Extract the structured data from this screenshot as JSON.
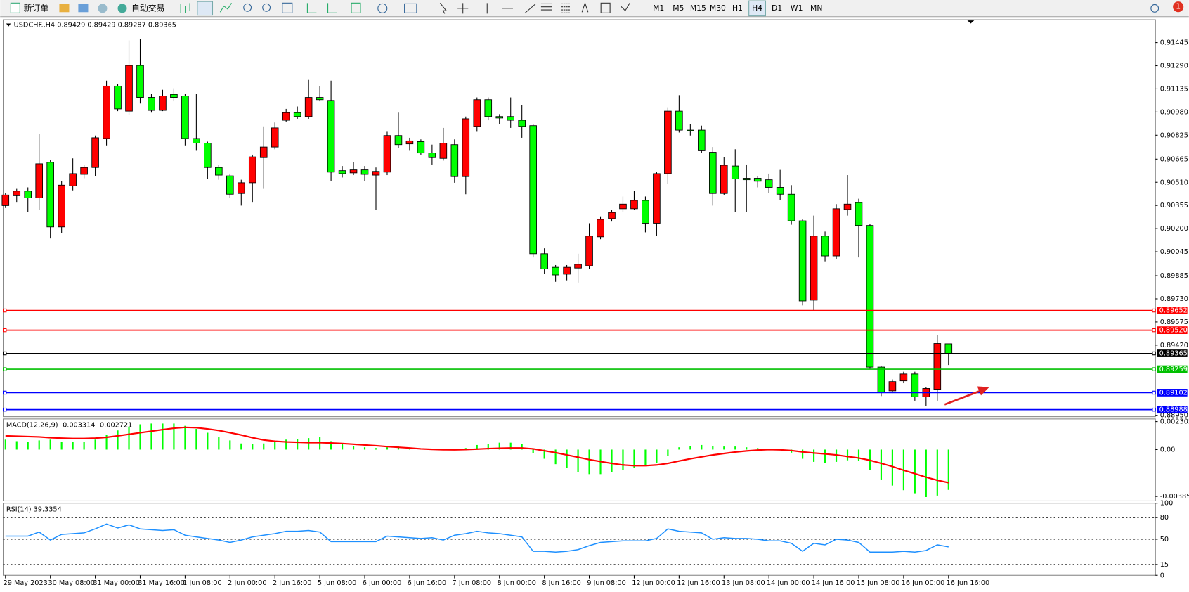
{
  "toolbar": {
    "new_order": "新订单",
    "auto_trade": "自动交易",
    "timeframes": [
      "M1",
      "M5",
      "M15",
      "M30",
      "H1",
      "H4",
      "D1",
      "W1",
      "MN"
    ],
    "selected_timeframe_index": 5,
    "badge": "1"
  },
  "chart_data": [
    {
      "type": "candlestick",
      "title": "USDCHF.,H4  0.89429 0.89429 0.89287 0.89365",
      "up_color": "#ff0000",
      "down_color": "#00ff00",
      "open": [
        0.90354,
        0.9042,
        0.90451,
        0.90405,
        0.90644,
        0.90211,
        0.90486,
        0.90563,
        0.90609,
        0.90803,
        0.91154,
        0.90986,
        0.91292,
        0.91078,
        0.90991,
        0.91098,
        0.91088,
        0.90803,
        0.90772,
        0.90609,
        0.90553,
        0.90435,
        0.90507,
        0.90675,
        0.90746,
        0.90925,
        0.90976,
        0.9095,
        0.91078,
        0.91058,
        0.90588,
        0.90573,
        0.90593,
        0.90558,
        0.90578,
        0.90823,
        0.90767,
        0.90782,
        0.90706,
        0.9067,
        0.90762,
        0.90548,
        0.90884,
        0.91063,
        0.9095,
        0.9095,
        0.90925,
        0.90889,
        0.90032,
        0.89941,
        0.89895,
        0.89936,
        0.89951,
        0.90145,
        0.90267,
        0.90333,
        0.90333,
        0.90389,
        0.90236,
        0.90568,
        0.90986,
        0.90859,
        0.90859,
        0.90711,
        0.90435,
        0.90619,
        0.90537,
        0.90537,
        0.90527,
        0.90476,
        0.9043,
        0.90252,
        0.89721,
        0.9015,
        0.90017,
        0.90328,
        0.90374,
        0.90221,
        0.89273,
        0.89114,
        0.89181,
        0.89227,
        0.89074,
        0.89125,
        0.89429
      ],
      "high": [
        0.9044,
        0.90466,
        0.90476,
        0.90833,
        0.9066,
        0.90517,
        0.9067,
        0.90629,
        0.90823,
        0.9119,
        0.9117,
        0.9146,
        0.91471,
        0.91103,
        0.91129,
        0.91139,
        0.91103,
        0.91103,
        0.90782,
        0.90629,
        0.90568,
        0.90527,
        0.90695,
        0.90884,
        0.9091,
        0.91001,
        0.91017,
        0.91195,
        0.91154,
        0.9119,
        0.90619,
        0.90644,
        0.90619,
        0.90609,
        0.90848,
        0.90976,
        0.90808,
        0.90797,
        0.90762,
        0.90874,
        0.90797,
        0.9095,
        0.91078,
        0.91078,
        0.90966,
        0.91078,
        0.91027,
        0.90899,
        0.90068,
        0.89956,
        0.89956,
        0.90032,
        0.90236,
        0.90282,
        0.90323,
        0.90415,
        0.90451,
        0.90415,
        0.90578,
        0.91012,
        0.91093,
        0.90899,
        0.90889,
        0.90746,
        0.9068,
        0.90731,
        0.90629,
        0.90553,
        0.90568,
        0.90593,
        0.90491,
        0.90262,
        0.90287,
        0.9018,
        0.90364,
        0.90558,
        0.904,
        0.90231,
        0.89283,
        0.89191,
        0.89242,
        0.89242,
        0.8914,
        0.89487,
        0.89429
      ],
      "low": [
        0.90338,
        0.90374,
        0.90313,
        0.90323,
        0.90134,
        0.9017,
        0.90456,
        0.90537,
        0.90553,
        0.90757,
        0.90986,
        0.90961,
        0.91037,
        0.90976,
        0.90986,
        0.91052,
        0.90757,
        0.90721,
        0.90532,
        0.90527,
        0.90405,
        0.90354,
        0.90374,
        0.90466,
        0.90731,
        0.90915,
        0.90935,
        0.90935,
        0.91052,
        0.90517,
        0.90542,
        0.90558,
        0.90517,
        0.90323,
        0.90558,
        0.90741,
        0.90721,
        0.90695,
        0.90629,
        0.90655,
        0.90507,
        0.9043,
        0.90848,
        0.90925,
        0.90899,
        0.90874,
        0.90808,
        0.90007,
        0.89895,
        0.89844,
        0.89854,
        0.89839,
        0.8993,
        0.90129,
        0.90247,
        0.90313,
        0.90323,
        0.90175,
        0.9015,
        0.90497,
        0.90843,
        0.90823,
        0.90706,
        0.90354,
        0.90425,
        0.90313,
        0.90313,
        0.90476,
        0.9044,
        0.90389,
        0.90226,
        0.89686,
        0.8965,
        0.89981,
        0.89997,
        0.90287,
        0.90007,
        0.89257,
        0.89079,
        0.89099,
        0.89165,
        0.89048,
        0.89012,
        0.89048,
        0.89287
      ],
      "close": [
        0.90425,
        0.90451,
        0.90405,
        0.90634,
        0.90211,
        0.90491,
        0.90568,
        0.90609,
        0.90808,
        0.91154,
        0.91001,
        0.91292,
        0.91078,
        0.90991,
        0.91088,
        0.91078,
        0.90803,
        0.90772,
        0.90609,
        0.90558,
        0.9043,
        0.90507,
        0.9068,
        0.90746,
        0.90874,
        0.90976,
        0.9095,
        0.91078,
        0.91063,
        0.90578,
        0.90568,
        0.90593,
        0.90563,
        0.90583,
        0.90823,
        0.90762,
        0.90787,
        0.90706,
        0.90675,
        0.90772,
        0.90548,
        0.90935,
        0.91063,
        0.9095,
        0.9094,
        0.90925,
        0.90884,
        0.90032,
        0.8993,
        0.8989,
        0.89941,
        0.89961,
        0.9015,
        0.90262,
        0.90308,
        0.90364,
        0.90389,
        0.90236,
        0.90568,
        0.90986,
        0.90859,
        0.90854,
        0.90721,
        0.90435,
        0.90624,
        0.90532,
        0.90527,
        0.90517,
        0.90476,
        0.9043,
        0.90252,
        0.89716,
        0.9015,
        0.90017,
        0.90333,
        0.90364,
        0.90221,
        0.89273,
        0.89104,
        0.89176,
        0.89227,
        0.89074,
        0.8913,
        0.89431,
        0.89365
      ],
      "ylim": [
        0.88941,
        0.91598
      ],
      "yticks": [
        0.91445,
        {
          "value": 0.9129,
          "label": "0.91290"
        },
        0.91135,
        {
          "value": 0.9098,
          "label": "0.90980"
        },
        0.90825,
        0.90665,
        {
          "value": 0.9051,
          "label": "0.90510"
        },
        0.90355,
        {
          "value": 0.902,
          "label": "0.90200"
        },
        0.90045,
        0.89885,
        {
          "value": 0.8973,
          "label": "0.89730"
        },
        0.89575,
        {
          "value": 0.8942,
          "label": "0.89420"
        },
        {
          "value": 0.8895,
          "label": "0.88950"
        }
      ],
      "hlines": [
        {
          "value": 0.89652,
          "label": "0.89652",
          "color": "#ff0000"
        },
        {
          "value": 0.8952,
          "label": "0.89520",
          "color": "#ff0000"
        },
        {
          "value": 0.89365,
          "label": "0.89365",
          "color": "#000000"
        },
        {
          "value": 0.89259,
          "label": "0.89259",
          "color": "#00c000"
        },
        {
          "value": 0.89102,
          "label": "0.89102",
          "color": "#0000ff"
        },
        {
          "value": 0.88988,
          "label": "0.88988",
          "color": "#0000ff"
        }
      ]
    },
    {
      "type": "macd",
      "title": "MACD(12,26,9) -0.003314 -0.002721",
      "histogram_color": "#00ff00",
      "signal_color": "#ff0000",
      "histogram": [
        0.000819,
        0.000693,
        0.00063,
        0.000756,
        0.000819,
        0.00063,
        0.00063,
        0.00063,
        0.000819,
        0.001197,
        0.001575,
        0.00189,
        0.002079,
        0.002142,
        0.002142,
        0.002142,
        0.001953,
        0.001701,
        0.001386,
        0.001008,
        0.000756,
        0.000504,
        0.000441,
        0.000504,
        0.00063,
        0.000819,
        0.000882,
        0.000945,
        0.001008,
        0.000693,
        0.000441,
        0.000315,
        0.000189,
        0.000126,
        0.000189,
        0.000252,
        0.000126,
        6.3e-05,
        6.3e-05,
        6.3e-05,
        0,
        0.000126,
        0.000378,
        0.000441,
        0.000567,
        0.000567,
        0.000441,
        -0.000315,
        -0.000756,
        -0.001197,
        -0.001512,
        -0.001827,
        -0.002016,
        -0.002016,
        -0.001827,
        -0.001701,
        -0.001512,
        -0.001323,
        -0.001071,
        -0.000504,
        0.000189,
        0.000315,
        0.000378,
        0.000315,
        0.000252,
        0.000252,
        0.000189,
        0.000126,
        6.3e-05,
        6.3e-05,
        -0.000252,
        -0.000756,
        -0.001008,
        -0.001071,
        -0.001008,
        -0.000882,
        -0.000945,
        -0.001701,
        -0.002457,
        -0.002961,
        -0.003339,
        -0.003591,
        -0.003906,
        -0.00378,
        -0.003314
      ],
      "signal": [
        0.00113,
        0.0011,
        0.00107,
        0.00104,
        0.00098,
        0.00094,
        0.00091,
        0.00091,
        0.00094,
        0.00101,
        0.00113,
        0.00126,
        0.00139,
        0.00151,
        0.00164,
        0.00176,
        0.00183,
        0.0018,
        0.0017,
        0.00157,
        0.00139,
        0.0012,
        0.00098,
        0.00079,
        0.00069,
        0.00063,
        0.0006,
        0.00057,
        0.00057,
        0.00054,
        0.0005,
        0.00044,
        0.00038,
        0.00032,
        0.00025,
        0.00019,
        0.00013,
        6e-05,
        2e-05,
        -1e-05,
        -2e-05,
        0,
        4e-05,
        8e-05,
        0.00011,
        0.00013,
        0.00013,
        6e-05,
        -9e-05,
        -0.00025,
        -0.00044,
        -0.00063,
        -0.00082,
        -0.00098,
        -0.00113,
        -0.00126,
        -0.00132,
        -0.00132,
        -0.00126,
        -0.00113,
        -0.00094,
        -0.00076,
        -0.0006,
        -0.00044,
        -0.00032,
        -0.0002,
        -0.00011,
        -4e-05,
        0,
        -2e-05,
        -8e-05,
        -0.00019,
        -0.00028,
        -0.00035,
        -0.00044,
        -0.00057,
        -0.00069,
        -0.00088,
        -0.00113,
        -0.00139,
        -0.0017,
        -0.00198,
        -0.00227,
        -0.00252,
        -0.002721
      ],
      "ylim": [
        -0.00422,
        0.00252
      ],
      "yticks": [
        0.002305,
        {
          "value": 0,
          "label": "0.00"
        },
        -0.003855
      ]
    },
    {
      "type": "line",
      "title": "RSI(14) 39.3354",
      "color": "#1e90ff",
      "values": [
        54.4,
        54.4,
        54.4,
        60,
        48.9,
        56.7,
        57.8,
        58.9,
        64.4,
        71.1,
        65.6,
        70,
        64.4,
        63.3,
        62.2,
        63.3,
        55.6,
        53.3,
        51.1,
        48.9,
        45.6,
        48.9,
        53.3,
        55.6,
        57.8,
        61.1,
        61.1,
        62.2,
        60,
        46.7,
        46.7,
        46.7,
        46.7,
        46.7,
        54.4,
        53.3,
        52.2,
        51.1,
        52.2,
        48.9,
        55.6,
        57.8,
        61.1,
        58.9,
        57.8,
        55.6,
        53.3,
        33.3,
        33.3,
        32.2,
        33.3,
        35.6,
        41.1,
        45.6,
        46.7,
        47.8,
        47.8,
        47.8,
        51.1,
        64.4,
        61.1,
        60,
        58.9,
        50,
        52.2,
        51.1,
        51.1,
        50,
        47.8,
        47.8,
        44.4,
        33.3,
        44.4,
        42.2,
        50,
        48.9,
        45.6,
        32.2,
        32.2,
        32.2,
        33.3,
        32.2,
        34.4,
        42.2,
        39.3354
      ],
      "ylim": [
        0,
        100
      ],
      "yticks": [
        100,
        80,
        50,
        15,
        0
      ],
      "levels": [
        80,
        50,
        15
      ],
      "categories": [
        "29 May 2023",
        null,
        null,
        null,
        "30 May 08:00",
        null,
        null,
        null,
        "31 May 00:00",
        null,
        null,
        null,
        "31 May 16:00",
        null,
        null,
        null,
        "1 Jun 08:00",
        null,
        null,
        null,
        "2 Jun 00:00",
        null,
        null,
        null,
        "2 Jun 16:00",
        null,
        null,
        null,
        "5 Jun 08:00",
        null,
        null,
        null,
        "6 Jun 00:00",
        null,
        null,
        null,
        "6 Jun 16:00",
        null,
        null,
        null,
        "7 Jun 08:00",
        null,
        null,
        null,
        "8 Jun 00:00",
        null,
        null,
        null,
        "8 Jun 16:00",
        null,
        null,
        null,
        "9 Jun 08:00",
        null,
        null,
        null,
        "12 Jun 00:00",
        null,
        null,
        null,
        "12 Jun 16:00",
        null,
        null,
        null,
        "13 Jun 08:00",
        null,
        null,
        null,
        "14 Jun 00:00",
        null,
        null,
        null,
        "14 Jun 16:00",
        null,
        null,
        null,
        "15 Jun 08:00",
        null,
        null,
        null,
        "16 Jun 00:00",
        null,
        null,
        null,
        "16 Jun 16:00"
      ]
    }
  ]
}
